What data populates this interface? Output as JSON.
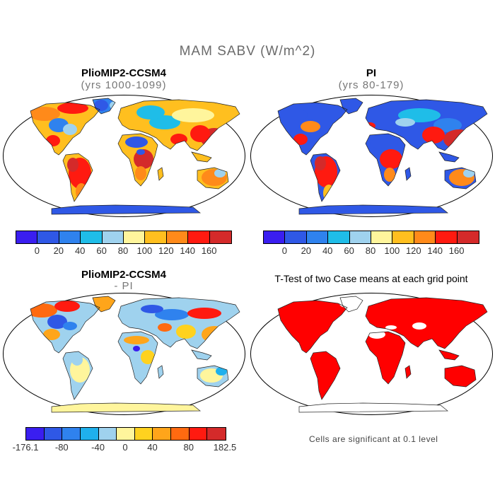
{
  "figure": {
    "title": "MAM SABV (W/m^2)"
  },
  "panels": {
    "p1": {
      "title": "PlioMIP2-CCSM4",
      "subtitle": "(yrs 1000-1099)"
    },
    "p2": {
      "title": "PI",
      "subtitle": "(yrs 80-179)"
    },
    "p3": {
      "title": "PlioMIP2-CCSM4",
      "subtitle": "- PI"
    },
    "p4": {
      "title": "T-Test of two Case means at each grid point",
      "note": "Cells are significant at 0.1 level"
    }
  },
  "colorbar_abs": {
    "colors": [
      "#3a1ef0",
      "#2f58e6",
      "#2f82ee",
      "#1fbde8",
      "#9fd2ee",
      "#fff59c",
      "#ffbf1f",
      "#ff8a1a",
      "#ff1a10",
      "#d42a2a"
    ],
    "ticks": [
      "0",
      "20",
      "40",
      "60",
      "80",
      "100",
      "120",
      "140",
      "160"
    ]
  },
  "colorbar_diff": {
    "colors": [
      "#3a1ef0",
      "#2f58e6",
      "#2f82ee",
      "#1fb0ec",
      "#9fd2ee",
      "#fff59c",
      "#ffd21f",
      "#ffa51a",
      "#ff6a10",
      "#ff1a10",
      "#d42a2a"
    ],
    "ticks": [
      "-176.1",
      "-80",
      "-40",
      "0",
      "40",
      "80",
      "182.5"
    ]
  },
  "legend_colors": {
    "land_outline": "#000000",
    "significant": "#ff0000"
  }
}
